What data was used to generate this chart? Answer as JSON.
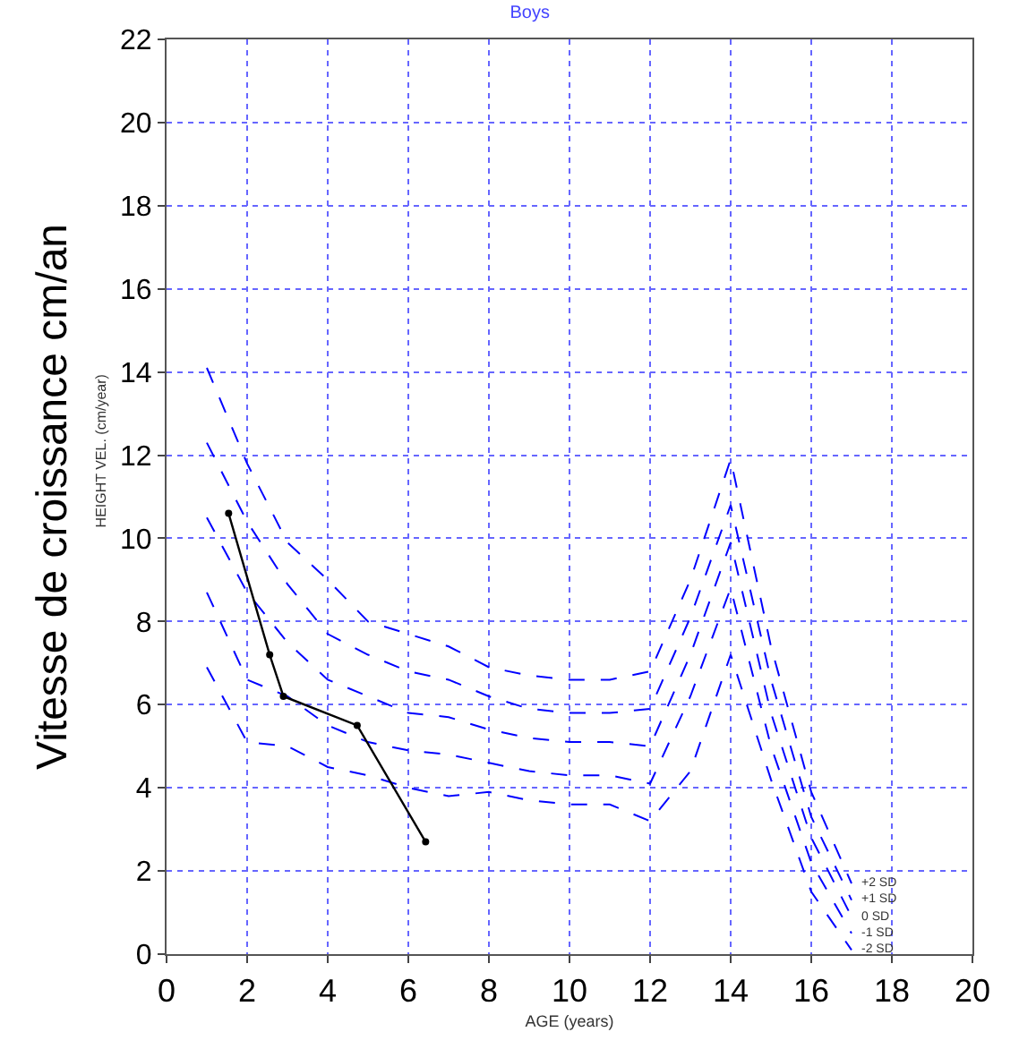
{
  "chart_data": {
    "type": "line",
    "title": "Boys",
    "xlabel": "AGE (years)",
    "ylabel": "Vitesse de croissance cm/an",
    "annotations": [
      "HEIGHT VEL. (cm/year)"
    ],
    "xlim": [
      0,
      20
    ],
    "xticks": [
      0,
      2,
      4,
      6,
      8,
      10,
      12,
      14,
      16,
      18,
      20
    ],
    "ylim": [
      0,
      22
    ],
    "yticks": [
      0,
      2,
      4,
      6,
      8,
      10,
      12,
      14,
      16,
      18,
      20,
      22
    ],
    "grid": true,
    "legend": false,
    "x": [
      1,
      2,
      3,
      4,
      5,
      6,
      7,
      8,
      9,
      10,
      11,
      12,
      13,
      14,
      15,
      16,
      17
    ],
    "series": [
      {
        "name": "+2 SD",
        "color": "#0000ff",
        "line_style": "dashed",
        "marker": "none",
        "values": [
          14.1,
          11.8,
          9.9,
          9.0,
          8.0,
          7.7,
          7.4,
          6.9,
          6.7,
          6.6,
          6.6,
          6.8,
          9.0,
          11.9,
          7.4,
          3.9,
          1.7
        ]
      },
      {
        "name": "+1 SD",
        "color": "#0000ff",
        "line_style": "dashed",
        "marker": "none",
        "values": [
          12.3,
          10.4,
          8.9,
          7.7,
          7.2,
          6.8,
          6.6,
          6.2,
          5.9,
          5.8,
          5.8,
          5.9,
          8.1,
          10.8,
          6.6,
          3.3,
          1.3
        ]
      },
      {
        "name": "0 SD",
        "color": "#0000ff",
        "line_style": "dashed",
        "marker": "none",
        "values": [
          10.5,
          8.7,
          7.5,
          6.6,
          6.2,
          5.8,
          5.7,
          5.4,
          5.2,
          5.1,
          5.1,
          5.0,
          7.2,
          9.9,
          5.8,
          2.8,
          0.9
        ]
      },
      {
        "name": "-1 SD",
        "color": "#0000ff",
        "line_style": "dashed",
        "marker": "none",
        "values": [
          8.7,
          6.6,
          6.2,
          5.5,
          5.1,
          4.9,
          4.8,
          4.6,
          4.4,
          4.3,
          4.3,
          4.1,
          6.2,
          8.8,
          5.0,
          2.2,
          0.5
        ]
      },
      {
        "name": "-2 SD",
        "color": "#0000ff",
        "line_style": "dashed",
        "marker": "none",
        "values": [
          6.9,
          5.1,
          5.0,
          4.5,
          4.3,
          4.0,
          3.8,
          3.9,
          3.7,
          3.6,
          3.6,
          3.2,
          4.4,
          7.2,
          4.2,
          1.5,
          0.1
        ]
      },
      {
        "color": "#000000",
        "line_style": "solid",
        "marker": "circle",
        "x": [
          1.54,
          2.56,
          2.9,
          4.73,
          6.43
        ],
        "values": [
          10.6,
          7.2,
          6.2,
          5.5,
          2.7
        ]
      }
    ]
  }
}
